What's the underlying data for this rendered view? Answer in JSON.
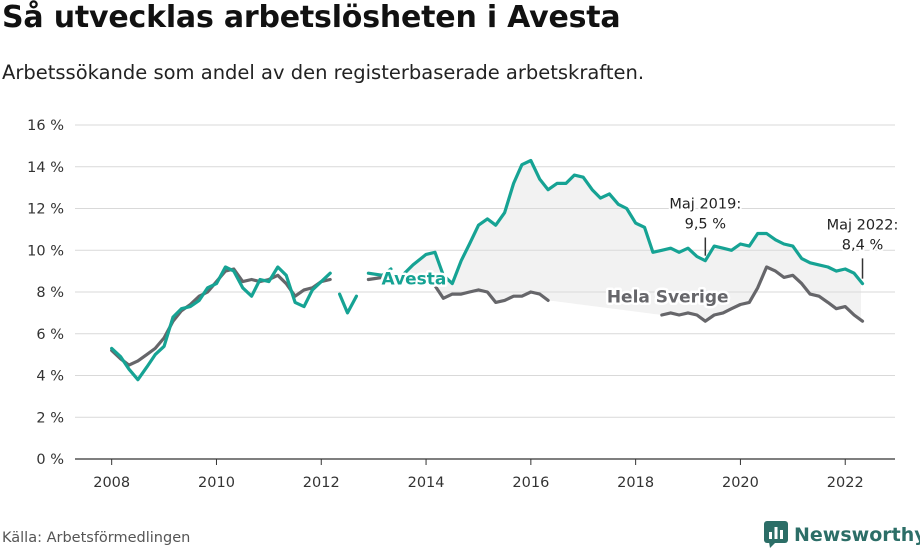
{
  "title": "Så utvecklas arbetslösheten i Avesta",
  "subtitle": "Arbetssökande som andel av den registerbaserade arbetskraften.",
  "source": "Källa: Arbetsförmedlingen",
  "brand": {
    "name": "Newsworthy",
    "icon": "newsworthy-bar-chart-icon",
    "color": "#2c6e67"
  },
  "chart_data": {
    "type": "line",
    "x_unit": "year",
    "xlim": [
      2007.3,
      2022.95
    ],
    "ylim": [
      0,
      16
    ],
    "xticks": [
      2008,
      2010,
      2012,
      2014,
      2016,
      2018,
      2020,
      2022
    ],
    "xtick_labels": [
      "2008",
      "2010",
      "2012",
      "2014",
      "2016",
      "2018",
      "2020",
      "2022"
    ],
    "yticks": [
      0,
      2,
      4,
      6,
      8,
      10,
      12,
      14,
      16
    ],
    "ytick_labels": [
      "0 %",
      "2 %",
      "4 %",
      "6 %",
      "8 %",
      "10 %",
      "12 %",
      "14 %",
      "16 %"
    ],
    "grid": "horizontal",
    "series": [
      {
        "name": "Avesta",
        "color": "#16a394",
        "points": [
          [
            2008.0,
            5.3
          ],
          [
            2008.17,
            4.9
          ],
          [
            2008.33,
            4.3
          ],
          [
            2008.5,
            3.8
          ],
          [
            2008.67,
            4.4
          ],
          [
            2008.83,
            5.0
          ],
          [
            2009.0,
            5.4
          ],
          [
            2009.17,
            6.8
          ],
          [
            2009.33,
            7.2
          ],
          [
            2009.5,
            7.3
          ],
          [
            2009.67,
            7.6
          ],
          [
            2009.83,
            8.2
          ],
          [
            2010.0,
            8.4
          ],
          [
            2010.17,
            9.2
          ],
          [
            2010.33,
            9.0
          ],
          [
            2010.5,
            8.2
          ],
          [
            2010.67,
            7.8
          ],
          [
            2010.83,
            8.6
          ],
          [
            2011.0,
            8.5
          ],
          [
            2011.17,
            9.2
          ],
          [
            2011.33,
            8.8
          ],
          [
            2011.5,
            7.5
          ],
          [
            2011.67,
            7.3
          ],
          [
            2011.83,
            8.1
          ],
          [
            2012.0,
            8.5
          ],
          [
            2012.17,
            8.9
          ],
          null,
          [
            2012.35,
            7.9
          ],
          [
            2012.5,
            7.0
          ],
          [
            2012.67,
            7.8
          ],
          null,
          [
            2012.9,
            8.9
          ],
          [
            2013.17,
            8.8
          ],
          [
            2013.33,
            9.1
          ],
          null,
          [
            2013.55,
            8.8
          ],
          [
            2013.75,
            9.3
          ],
          [
            2014.0,
            9.8
          ],
          [
            2014.17,
            9.9
          ],
          [
            2014.33,
            8.8
          ],
          [
            2014.5,
            8.4
          ],
          [
            2014.67,
            9.5
          ],
          [
            2014.83,
            10.3
          ],
          [
            2015.0,
            11.2
          ],
          [
            2015.17,
            11.5
          ],
          [
            2015.33,
            11.2
          ],
          [
            2015.5,
            11.8
          ],
          [
            2015.67,
            13.2
          ],
          [
            2015.83,
            14.1
          ],
          [
            2016.0,
            14.3
          ],
          [
            2016.17,
            13.4
          ],
          [
            2016.33,
            12.9
          ],
          [
            2016.5,
            13.2
          ],
          [
            2016.67,
            13.2
          ],
          [
            2016.83,
            13.6
          ],
          [
            2017.0,
            13.5
          ],
          [
            2017.17,
            12.9
          ],
          [
            2017.33,
            12.5
          ],
          [
            2017.5,
            12.7
          ],
          [
            2017.67,
            12.2
          ],
          [
            2017.83,
            12.0
          ],
          [
            2018.0,
            11.3
          ],
          [
            2018.17,
            11.1
          ],
          [
            2018.33,
            9.9
          ],
          [
            2018.5,
            10.0
          ],
          [
            2018.67,
            10.1
          ],
          [
            2018.83,
            9.9
          ],
          [
            2019.0,
            10.1
          ],
          [
            2019.17,
            9.7
          ],
          [
            2019.33,
            9.5
          ],
          [
            2019.5,
            10.2
          ],
          [
            2019.67,
            10.1
          ],
          [
            2019.83,
            10.0
          ],
          [
            2020.0,
            10.3
          ],
          [
            2020.17,
            10.2
          ],
          [
            2020.33,
            10.8
          ],
          [
            2020.5,
            10.8
          ],
          [
            2020.67,
            10.5
          ],
          [
            2020.83,
            10.3
          ],
          [
            2021.0,
            10.2
          ],
          [
            2021.17,
            9.6
          ],
          [
            2021.33,
            9.4
          ],
          [
            2021.5,
            9.3
          ],
          [
            2021.67,
            9.2
          ],
          [
            2021.83,
            9.0
          ],
          [
            2022.0,
            9.1
          ],
          [
            2022.17,
            8.9
          ],
          [
            2022.33,
            8.4
          ]
        ]
      },
      {
        "name": "Hela Sverige",
        "color": "#66666a",
        "points": [
          [
            2008.0,
            5.2
          ],
          [
            2008.17,
            4.8
          ],
          [
            2008.33,
            4.5
          ],
          [
            2008.5,
            4.7
          ],
          [
            2008.67,
            5.0
          ],
          [
            2008.83,
            5.3
          ],
          [
            2009.0,
            5.8
          ],
          [
            2009.17,
            6.6
          ],
          [
            2009.33,
            7.1
          ],
          [
            2009.5,
            7.4
          ],
          [
            2009.67,
            7.8
          ],
          [
            2009.83,
            8.0
          ],
          [
            2010.0,
            8.5
          ],
          [
            2010.17,
            9.0
          ],
          [
            2010.33,
            9.1
          ],
          [
            2010.5,
            8.5
          ],
          [
            2010.67,
            8.6
          ],
          [
            2010.83,
            8.5
          ],
          [
            2011.0,
            8.6
          ],
          [
            2011.17,
            8.8
          ],
          [
            2011.33,
            8.4
          ],
          [
            2011.5,
            7.8
          ],
          [
            2011.67,
            8.1
          ],
          [
            2011.83,
            8.2
          ],
          [
            2012.0,
            8.5
          ],
          [
            2012.17,
            8.6
          ],
          null,
          [
            2012.9,
            8.6
          ],
          [
            2013.17,
            8.7
          ],
          [
            2013.33,
            8.7
          ],
          null,
          [
            2013.55,
            8.5
          ],
          [
            2013.75,
            8.5
          ],
          [
            2014.0,
            8.6
          ],
          [
            2014.17,
            8.3
          ],
          [
            2014.33,
            7.7
          ],
          [
            2014.5,
            7.9
          ],
          [
            2014.67,
            7.9
          ],
          [
            2014.83,
            8.0
          ],
          [
            2015.0,
            8.1
          ],
          [
            2015.17,
            8.0
          ],
          [
            2015.33,
            7.5
          ],
          [
            2015.5,
            7.6
          ],
          [
            2015.67,
            7.8
          ],
          [
            2015.83,
            7.8
          ],
          [
            2016.0,
            8.0
          ],
          [
            2016.17,
            7.9
          ],
          [
            2016.33,
            7.6
          ],
          null,
          [
            2018.5,
            6.9
          ],
          [
            2018.67,
            7.0
          ],
          [
            2018.83,
            6.9
          ],
          [
            2019.0,
            7.0
          ],
          [
            2019.17,
            6.9
          ],
          [
            2019.33,
            6.6
          ],
          [
            2019.5,
            6.9
          ],
          [
            2019.67,
            7.0
          ],
          [
            2019.83,
            7.2
          ],
          [
            2020.0,
            7.4
          ],
          [
            2020.17,
            7.5
          ],
          [
            2020.33,
            8.2
          ],
          [
            2020.5,
            9.2
          ],
          [
            2020.67,
            9.0
          ],
          [
            2020.83,
            8.7
          ],
          [
            2021.0,
            8.8
          ],
          [
            2021.17,
            8.4
          ],
          [
            2021.33,
            7.9
          ],
          [
            2021.5,
            7.8
          ],
          [
            2021.67,
            7.5
          ],
          [
            2021.83,
            7.2
          ],
          [
            2022.0,
            7.3
          ],
          [
            2022.17,
            6.9
          ],
          [
            2022.33,
            6.6
          ]
        ]
      }
    ],
    "shade_between_series": {
      "from": 2013.5,
      "to": 2022.33,
      "color": "#f2f2f2"
    },
    "series_labels": [
      {
        "text": "Avesta",
        "x": 2013.15,
        "y": 8.35,
        "color": "#16a394"
      },
      {
        "text": "Hela Sverige",
        "x": 2017.45,
        "y": 7.5,
        "color": "#66666a"
      }
    ],
    "annotations": [
      {
        "lines": [
          "Maj 2019:",
          "9,5 %"
        ],
        "x": 2019.33,
        "y": 9.5,
        "text_y": 12.0
      },
      {
        "lines": [
          "Maj 2022:",
          "8,4 %"
        ],
        "x": 2022.33,
        "y": 8.4,
        "text_y": 11.0
      }
    ]
  }
}
